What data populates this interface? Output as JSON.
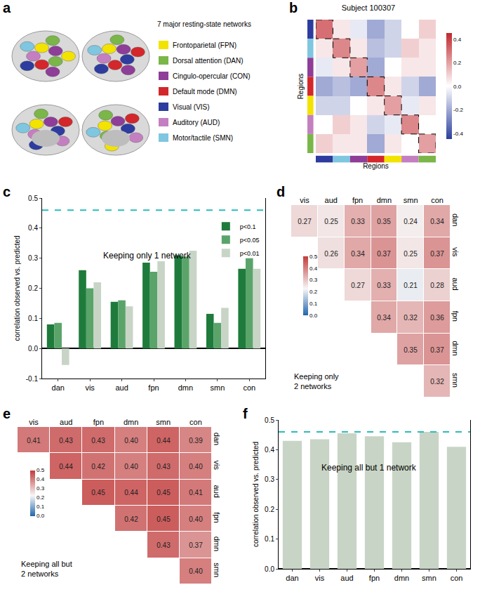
{
  "panel_a": {
    "panel": "a",
    "legend_title": "7 major resting-state networks",
    "networks": [
      {
        "label": "Frontoparietal (FPN)",
        "color": "#f2e300"
      },
      {
        "label": "Dorsal attention (DAN)",
        "color": "#7ab648"
      },
      {
        "label": "Cingulo-opercular (CON)",
        "color": "#8e3d98"
      },
      {
        "label": "Default mode (DMN)",
        "color": "#d3272b"
      },
      {
        "label": "Visual (VIS)",
        "color": "#2d3c9e"
      },
      {
        "label": "Auditory (AUD)",
        "color": "#c47fc1"
      },
      {
        "label": "Motor/tactile (SMN)",
        "color": "#7fc6e0"
      }
    ]
  },
  "chart_data": [
    {
      "panel": "b",
      "type": "heatmap",
      "title": "Subject 100307",
      "x_label": "Regions",
      "y_label": "Regions",
      "tick_labels": false,
      "colors": [
        "#2d3c9e",
        "#7fc6e0",
        "#8e3d98",
        "#d3272b",
        "#f2e300",
        "#c47fc1",
        "#7ab648"
      ],
      "cells": [
        [
          0.3,
          0.05,
          -0.05,
          -0.2,
          -0.1,
          0.0,
          0.1
        ],
        [
          0.05,
          0.25,
          0.05,
          -0.15,
          -0.1,
          0.1,
          0.05
        ],
        [
          -0.05,
          0.05,
          0.2,
          -0.2,
          0.0,
          0.05,
          0.05
        ],
        [
          -0.2,
          -0.15,
          -0.2,
          0.25,
          0.05,
          -0.1,
          -0.2
        ],
        [
          -0.1,
          -0.1,
          0.0,
          0.05,
          0.2,
          -0.05,
          0.05
        ],
        [
          0.0,
          0.1,
          0.05,
          -0.1,
          -0.05,
          0.25,
          0.0
        ],
        [
          0.1,
          0.05,
          0.05,
          -0.2,
          0.05,
          0.0,
          0.2
        ]
      ],
      "colorbar_range": [
        -0.45,
        0.45
      ],
      "colorbar_ticks": [
        -0.4,
        -0.2,
        {
          "value": 0,
          "label": "0.0"
        },
        0.2,
        0.4
      ]
    },
    {
      "panel": "c",
      "type": "bar",
      "annotation": "Keeping only 1 network",
      "y_label": "correlation observed vs. predicted",
      "categories": [
        "dan",
        "vis",
        "aud",
        "fpn",
        "dmn",
        "smn",
        "con"
      ],
      "series": [
        {
          "name": "p<0.1",
          "color": "#1e7b3c",
          "values": [
            0.08,
            0.26,
            0.155,
            0.285,
            0.31,
            0.115,
            0.265
          ]
        },
        {
          "name": "p<0.05",
          "color": "#5aa46a",
          "values": [
            0.085,
            0.2,
            0.16,
            0.255,
            0.305,
            0.085,
            0.3
          ]
        },
        {
          "name": "p<0.01",
          "color": "#c8d5c6",
          "values": [
            -0.055,
            0.22,
            0.14,
            0.29,
            0.325,
            0.135,
            0.265
          ]
        }
      ],
      "reference_line": {
        "value": 0.46,
        "color": "#2bbcbc",
        "line_style": "dashed"
      },
      "ylim": [
        -0.1,
        0.5
      ],
      "yticks": [
        -0.1,
        {
          "value": 0,
          "label": "0.0"
        },
        0.1,
        0.2,
        0.3,
        0.4,
        0.5
      ],
      "legend": "upper right",
      "grid": false
    },
    {
      "panel": "d",
      "type": "heatmap",
      "annotation": "Keeping only\n2 networks",
      "columns": [
        "vis",
        "aud",
        "fpn",
        "dmn",
        "smn",
        "con"
      ],
      "rows": [
        "dan",
        "vis",
        "aud",
        "fpn",
        "dmn",
        "smn"
      ],
      "cells": [
        [
          0.27,
          0.25,
          0.33,
          0.35,
          0.24,
          0.34
        ],
        [
          null,
          0.26,
          0.34,
          0.37,
          0.25,
          0.37
        ],
        [
          null,
          null,
          0.27,
          0.33,
          0.21,
          0.28
        ],
        [
          null,
          null,
          null,
          0.34,
          0.32,
          0.36
        ],
        [
          null,
          null,
          null,
          null,
          0.35,
          0.37
        ],
        [
          null,
          null,
          null,
          null,
          null,
          0.32
        ]
      ],
      "value_labels": [
        [
          "0.27",
          "0.25",
          "0.33",
          "0.35",
          "0.24",
          "0.34"
        ],
        [
          null,
          "0.26",
          "0.34",
          "0.37",
          "0.25",
          "0.37"
        ],
        [
          null,
          null,
          "0.27",
          "0.33",
          "0.21",
          "0.28"
        ],
        [
          null,
          null,
          null,
          "0.34",
          "0.32",
          "0.36"
        ],
        [
          null,
          null,
          null,
          null,
          "0.35",
          "0.37"
        ],
        [
          null,
          null,
          null,
          null,
          null,
          "0.32"
        ]
      ],
      "data_labels": true,
      "colorbar_range": [
        0,
        0.5
      ],
      "colorbar_ticks": [
        {
          "value": 0,
          "label": "0.0"
        },
        0.1,
        0.2,
        0.3,
        0.4,
        0.5
      ]
    },
    {
      "panel": "e",
      "type": "heatmap",
      "annotation": "Keeping all but\n2 networks",
      "columns": [
        "vis",
        "aud",
        "fpn",
        "dmn",
        "smn",
        "con"
      ],
      "rows": [
        "dan",
        "vis",
        "aud",
        "fpn",
        "dmn",
        "smn"
      ],
      "cells": [
        [
          0.41,
          0.43,
          0.43,
          0.4,
          0.44,
          0.39
        ],
        [
          null,
          0.44,
          0.42,
          0.4,
          0.43,
          0.4
        ],
        [
          null,
          null,
          0.45,
          0.44,
          0.45,
          0.41
        ],
        [
          null,
          null,
          null,
          0.42,
          0.45,
          0.4
        ],
        [
          null,
          null,
          null,
          null,
          0.43,
          0.37
        ],
        [
          null,
          null,
          null,
          null,
          null,
          0.4
        ]
      ],
      "value_labels": [
        [
          "0.41",
          "0.43",
          "0.43",
          "0.40",
          "0.44",
          "0.39"
        ],
        [
          null,
          "0.44",
          "0.42",
          "0.40",
          "0.43",
          "0.40"
        ],
        [
          null,
          null,
          "0.45",
          "0.44",
          "0.45",
          "0.41"
        ],
        [
          null,
          null,
          null,
          "0.42",
          "0.45",
          "0.40"
        ],
        [
          null,
          null,
          null,
          null,
          "0.43",
          "0.37"
        ],
        [
          null,
          null,
          null,
          null,
          null,
          "0.40"
        ]
      ],
      "data_labels": true,
      "colorbar_range": [
        0,
        0.5
      ],
      "colorbar_ticks": [
        {
          "value": 0,
          "label": "0.0"
        },
        0.1,
        0.2,
        0.3,
        0.4,
        0.5
      ]
    },
    {
      "panel": "f",
      "type": "bar",
      "annotation": "Keeping all but 1 network",
      "y_label": "correlation observed vs. predicted",
      "categories": [
        "dan",
        "vis",
        "aud",
        "fpn",
        "dmn",
        "smn",
        "con"
      ],
      "values": [
        0.43,
        0.435,
        0.455,
        0.445,
        0.425,
        0.46,
        0.41
      ],
      "color": "#c8d5c6",
      "reference_line": {
        "value": 0.46,
        "color": "#2bbcbc",
        "line_style": "dashed"
      },
      "ylim": [
        0,
        0.5
      ],
      "yticks": [
        {
          "value": 0,
          "label": "0.0"
        },
        0.1,
        0.2,
        0.3,
        0.4,
        0.5
      ],
      "grid": false
    }
  ]
}
